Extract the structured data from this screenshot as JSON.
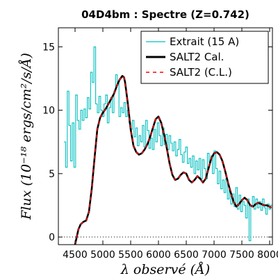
{
  "chart_data": {
    "type": "line",
    "title": "04D4bm : Spectre (Z=0.742)",
    "xlabel": "λ observé (Å)",
    "ylabel": "Flux (10⁻¹⁸ ergs/cm²/s/Å)",
    "xlim": [
      4200,
      8050
    ],
    "ylim": [
      -0.6,
      16.5
    ],
    "xticks": [
      4500,
      5000,
      5500,
      6000,
      6500,
      7000,
      7500,
      8000
    ],
    "yticks": [
      0,
      5,
      10,
      15
    ],
    "zero_line": {
      "y": 0,
      "style": "dotted"
    },
    "legend_position": "top-right",
    "series": [
      {
        "name": "Extrait (15 A)",
        "color": "#00bfbf",
        "style": "step",
        "x": [
          4300,
          4330,
          4360,
          4390,
          4420,
          4450,
          4480,
          4510,
          4540,
          4570,
          4600,
          4630,
          4660,
          4690,
          4720,
          4750,
          4780,
          4810,
          4840,
          4870,
          4900,
          4930,
          4960,
          4990,
          5020,
          5050,
          5080,
          5110,
          5140,
          5170,
          5200,
          5230,
          5260,
          5290,
          5320,
          5350,
          5380,
          5410,
          5440,
          5470,
          5500,
          5530,
          5560,
          5590,
          5620,
          5650,
          5680,
          5710,
          5740,
          5770,
          5800,
          5830,
          5860,
          5890,
          5920,
          5950,
          5980,
          6010,
          6040,
          6070,
          6100,
          6130,
          6160,
          6190,
          6220,
          6250,
          6280,
          6310,
          6340,
          6370,
          6400,
          6430,
          6460,
          6490,
          6520,
          6550,
          6580,
          6610,
          6640,
          6670,
          6700,
          6730,
          6760,
          6790,
          6820,
          6850,
          6880,
          6910,
          6940,
          6970,
          7000,
          7030,
          7060,
          7090,
          7120,
          7150,
          7180,
          7210,
          7240,
          7270,
          7300,
          7330,
          7360,
          7390,
          7420,
          7450,
          7480,
          7510,
          7540,
          7570,
          7600,
          7630,
          7660,
          7690,
          7720,
          7750,
          7780,
          7810,
          7840,
          7870,
          7900,
          7930,
          7960,
          7990,
          8020
        ],
        "y": [
          7.5,
          5.5,
          11.5,
          8.8,
          6.0,
          9.0,
          5.5,
          11.2,
          9.2,
          8.5,
          10.0,
          9.2,
          10.1,
          9.4,
          11.0,
          10.1,
          13.0,
          12.2,
          15.0,
          10.5,
          9.8,
          11.1,
          10.0,
          9.5,
          10.5,
          11.2,
          9.0,
          10.2,
          11.0,
          9.8,
          11.5,
          12.8,
          12.1,
          9.5,
          10.2,
          9.8,
          10.6,
          9.5,
          10.0,
          9.0,
          8.5,
          9.2,
          7.9,
          8.6,
          7.2,
          8.0,
          7.5,
          8.8,
          7.1,
          9.2,
          8.4,
          7.0,
          7.8,
          6.9,
          8.5,
          7.5,
          9.0,
          8.0,
          7.2,
          8.6,
          7.3,
          8.1,
          6.9,
          8.0,
          7.4,
          6.8,
          7.5,
          6.4,
          6.9,
          7.7,
          6.5,
          5.9,
          6.7,
          7.1,
          5.8,
          6.2,
          5.5,
          6.4,
          5.0,
          6.0,
          5.3,
          6.2,
          4.6,
          6.1,
          5.4,
          4.6,
          6.6,
          5.9,
          6.4,
          5.0,
          6.8,
          5.4,
          4.2,
          5.2,
          3.8,
          4.5,
          3.5,
          4.6,
          3.0,
          3.7,
          2.6,
          3.4,
          2.4,
          3.9,
          2.2,
          3.3,
          2.0,
          2.8,
          2.5,
          1.5,
          3.0,
          -0.3,
          2.5,
          3.2,
          2.2,
          3.0,
          2.3,
          2.8,
          2.1,
          3.0,
          2.3,
          1.8,
          2.6,
          2.2,
          2.5
        ]
      },
      {
        "name": "SALT2 Cal.",
        "color": "#000000",
        "style": "solid",
        "x": [
          4500,
          4560,
          4600,
          4650,
          4700,
          4750,
          4800,
          4850,
          4900,
          4950,
          5000,
          5050,
          5100,
          5150,
          5200,
          5250,
          5300,
          5350,
          5380,
          5400,
          5450,
          5500,
          5550,
          5600,
          5650,
          5700,
          5750,
          5800,
          5850,
          5900,
          5950,
          6000,
          6050,
          6100,
          6150,
          6200,
          6250,
          6300,
          6350,
          6400,
          6450,
          6500,
          6550,
          6600,
          6650,
          6700,
          6750,
          6800,
          6850,
          6900,
          6950,
          7000,
          7050,
          7100,
          7150,
          7200,
          7250,
          7300,
          7350,
          7400,
          7450,
          7500,
          7550,
          7600,
          7650,
          7700,
          7750,
          7800,
          7850,
          7900,
          7950,
          8000,
          8030
        ],
        "y": [
          -0.6,
          0.6,
          1.0,
          1.2,
          1.3,
          2.0,
          3.8,
          6.2,
          8.5,
          9.4,
          9.8,
          10.1,
          10.5,
          10.9,
          11.3,
          11.9,
          12.4,
          12.7,
          12.6,
          12.2,
          10.5,
          8.5,
          7.2,
          6.7,
          6.5,
          6.6,
          6.9,
          7.3,
          7.9,
          8.6,
          9.3,
          9.5,
          9.0,
          8.1,
          7.0,
          5.8,
          4.9,
          4.5,
          4.6,
          4.9,
          5.1,
          5.0,
          4.5,
          4.3,
          4.5,
          4.8,
          4.6,
          4.3,
          4.6,
          5.4,
          6.2,
          6.6,
          6.7,
          6.5,
          6.0,
          5.2,
          4.3,
          3.5,
          2.8,
          2.4,
          2.6,
          2.9,
          3.1,
          2.9,
          2.5,
          2.4,
          2.6,
          2.7,
          2.6,
          2.5,
          2.5,
          2.4,
          2.3
        ]
      },
      {
        "name": "SALT2 (C.L.)",
        "color": "#ff0000",
        "style": "dashed",
        "x": [
          4500,
          4560,
          4600,
          4650,
          4700,
          4750,
          4800,
          4850,
          4900,
          4950,
          5000,
          5050,
          5100,
          5150,
          5200,
          5250,
          5300,
          5350,
          5380,
          5400,
          5450,
          5500,
          5550,
          5600,
          5650,
          5700,
          5750,
          5800,
          5850,
          5900,
          5950,
          6000,
          6050,
          6100,
          6150,
          6200,
          6250,
          6300,
          6350,
          6400,
          6450,
          6500,
          6550,
          6600,
          6650,
          6700,
          6750,
          6800,
          6850,
          6900,
          6950,
          7000,
          7050,
          7100,
          7150,
          7200,
          7250,
          7300,
          7350,
          7400,
          7450,
          7500,
          7550,
          7600,
          7650,
          7700,
          7750,
          7800,
          7850,
          7900,
          7950,
          8000,
          8030
        ],
        "y": [
          -0.6,
          0.6,
          1.0,
          1.2,
          1.3,
          2.0,
          3.8,
          6.2,
          8.5,
          9.4,
          9.8,
          10.1,
          10.5,
          10.9,
          11.3,
          11.9,
          12.4,
          12.7,
          12.6,
          12.2,
          10.5,
          8.5,
          7.2,
          6.7,
          6.5,
          6.6,
          6.9,
          7.3,
          7.9,
          8.6,
          9.3,
          9.5,
          9.0,
          8.1,
          7.0,
          5.8,
          4.9,
          4.5,
          4.6,
          4.9,
          5.1,
          5.0,
          4.5,
          4.3,
          4.5,
          4.8,
          4.6,
          4.3,
          4.6,
          5.4,
          6.2,
          6.6,
          6.7,
          6.5,
          6.0,
          5.2,
          4.3,
          3.5,
          2.8,
          2.4,
          2.6,
          2.9,
          3.1,
          2.9,
          2.5,
          2.4,
          2.6,
          2.7,
          2.6,
          2.5,
          2.5,
          2.4,
          2.3
        ]
      }
    ]
  }
}
